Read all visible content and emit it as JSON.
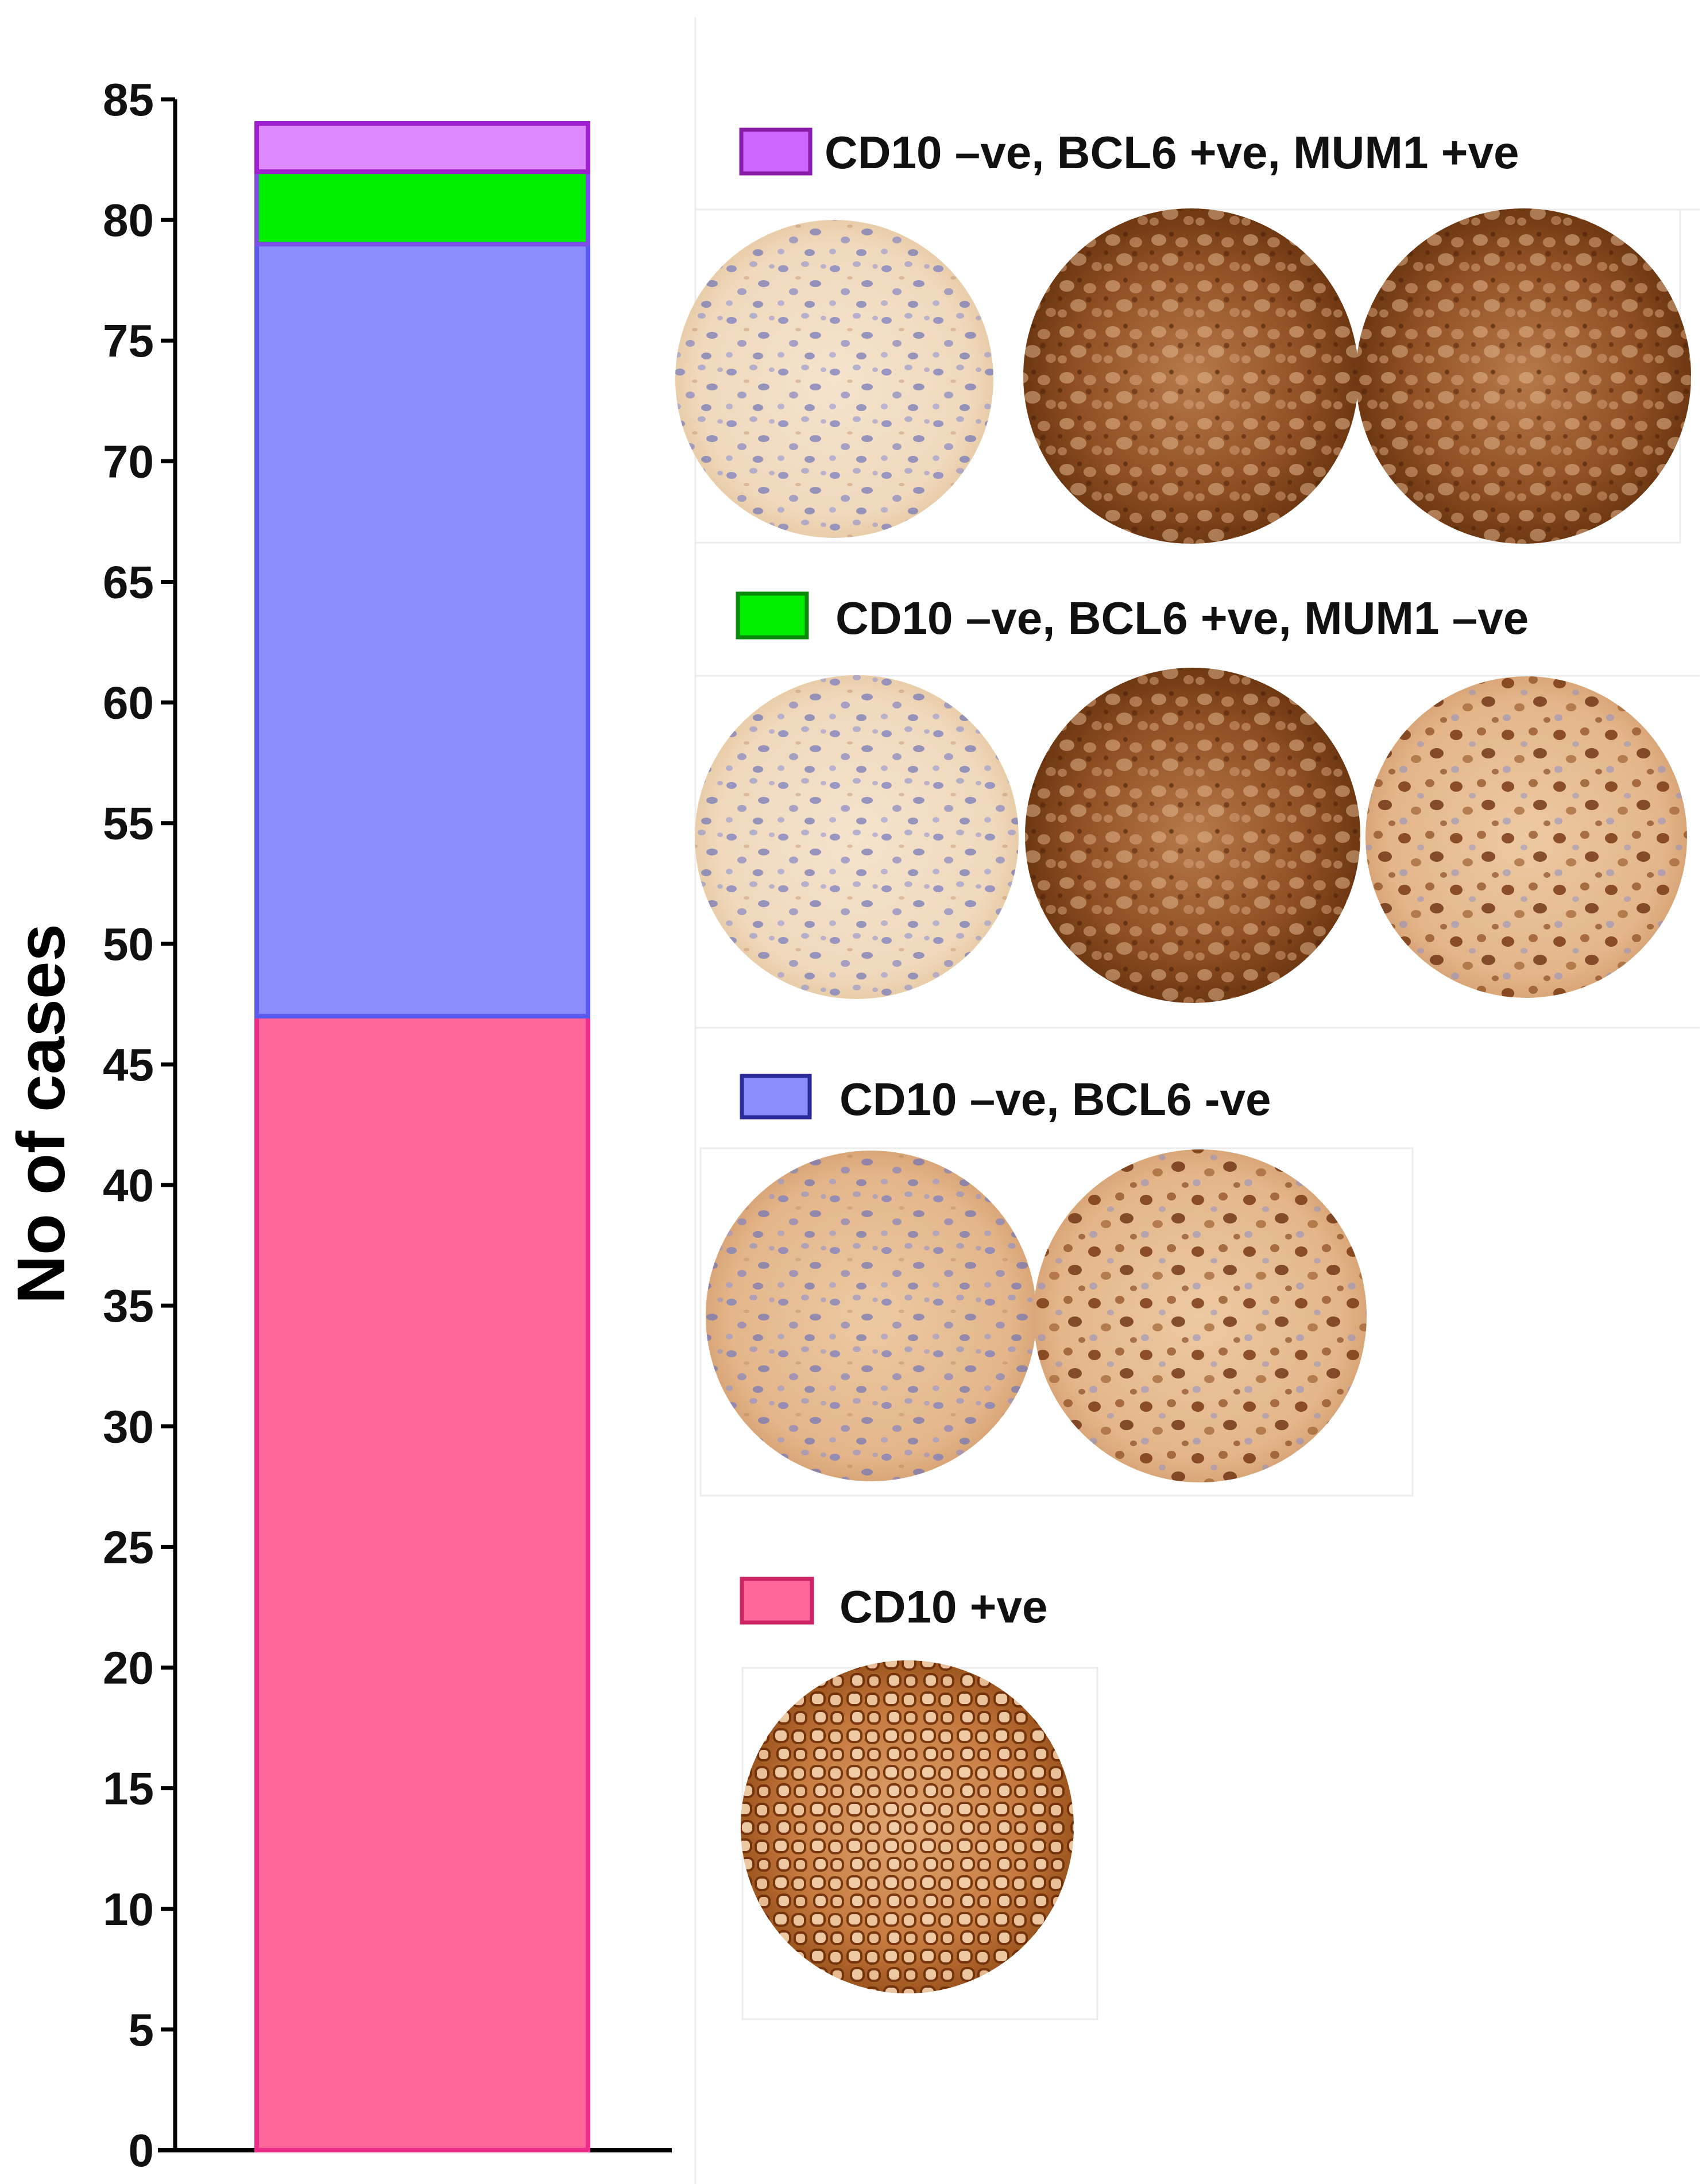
{
  "chart_data": {
    "type": "bar",
    "stacked": true,
    "categories": [
      ""
    ],
    "ylabel": "No of cases",
    "xlabel": "",
    "ylim": [
      0,
      85
    ],
    "ytick_step": 5,
    "yticks": [
      "0",
      "5",
      "10",
      "15",
      "20",
      "25",
      "30",
      "35",
      "40",
      "45",
      "50",
      "55",
      "60",
      "65",
      "70",
      "75",
      "80",
      "85"
    ],
    "series": [
      {
        "name": "CD10 +ve",
        "values": [
          47
        ],
        "fill": "#ff6699",
        "stroke": "#ee2d8a"
      },
      {
        "name": "CD10 –ve, BCL6 -ve",
        "values": [
          32
        ],
        "fill": "#8c8cff",
        "stroke": "#5a5aee"
      },
      {
        "name": "CD10 –ve, BCL6 +ve, MUM1 –ve",
        "values": [
          3
        ],
        "fill": "#00ee00",
        "stroke": "#7b4fe8"
      },
      {
        "name": "CD10 –ve, BCL6 +ve, MUM1 +ve",
        "values": [
          2
        ],
        "fill": "#dd88ff",
        "stroke": "#a020d0"
      }
    ]
  },
  "legend_panels": [
    {
      "label": "CD10 –ve, BCL6 +ve, MUM1 +ve",
      "swatch_fill": "#cc66ff",
      "swatch_stroke": "#8a1aa8",
      "image_count": 3,
      "images": [
        "ihc-core-negative",
        "ihc-core-strong",
        "ihc-core-strong"
      ]
    },
    {
      "label": "CD10 –ve, BCL6 +ve, MUM1 –ve",
      "swatch_fill": "#00ee00",
      "swatch_stroke": "#0a8a0a",
      "image_count": 3,
      "images": [
        "ihc-core-negative",
        "ihc-core-strong",
        "ihc-core-nuclear"
      ]
    },
    {
      "label": "CD10 –ve, BCL6 -ve",
      "swatch_fill": "#8c8cff",
      "swatch_stroke": "#2a2a9a",
      "image_count": 2,
      "images": [
        "ihc-core-negative",
        "ihc-core-nuclear"
      ]
    },
    {
      "label": "CD10 +ve",
      "swatch_fill": "#ff6699",
      "swatch_stroke": "#cc2266",
      "image_count": 1,
      "images": [
        "ihc-core-membrane"
      ]
    }
  ]
}
